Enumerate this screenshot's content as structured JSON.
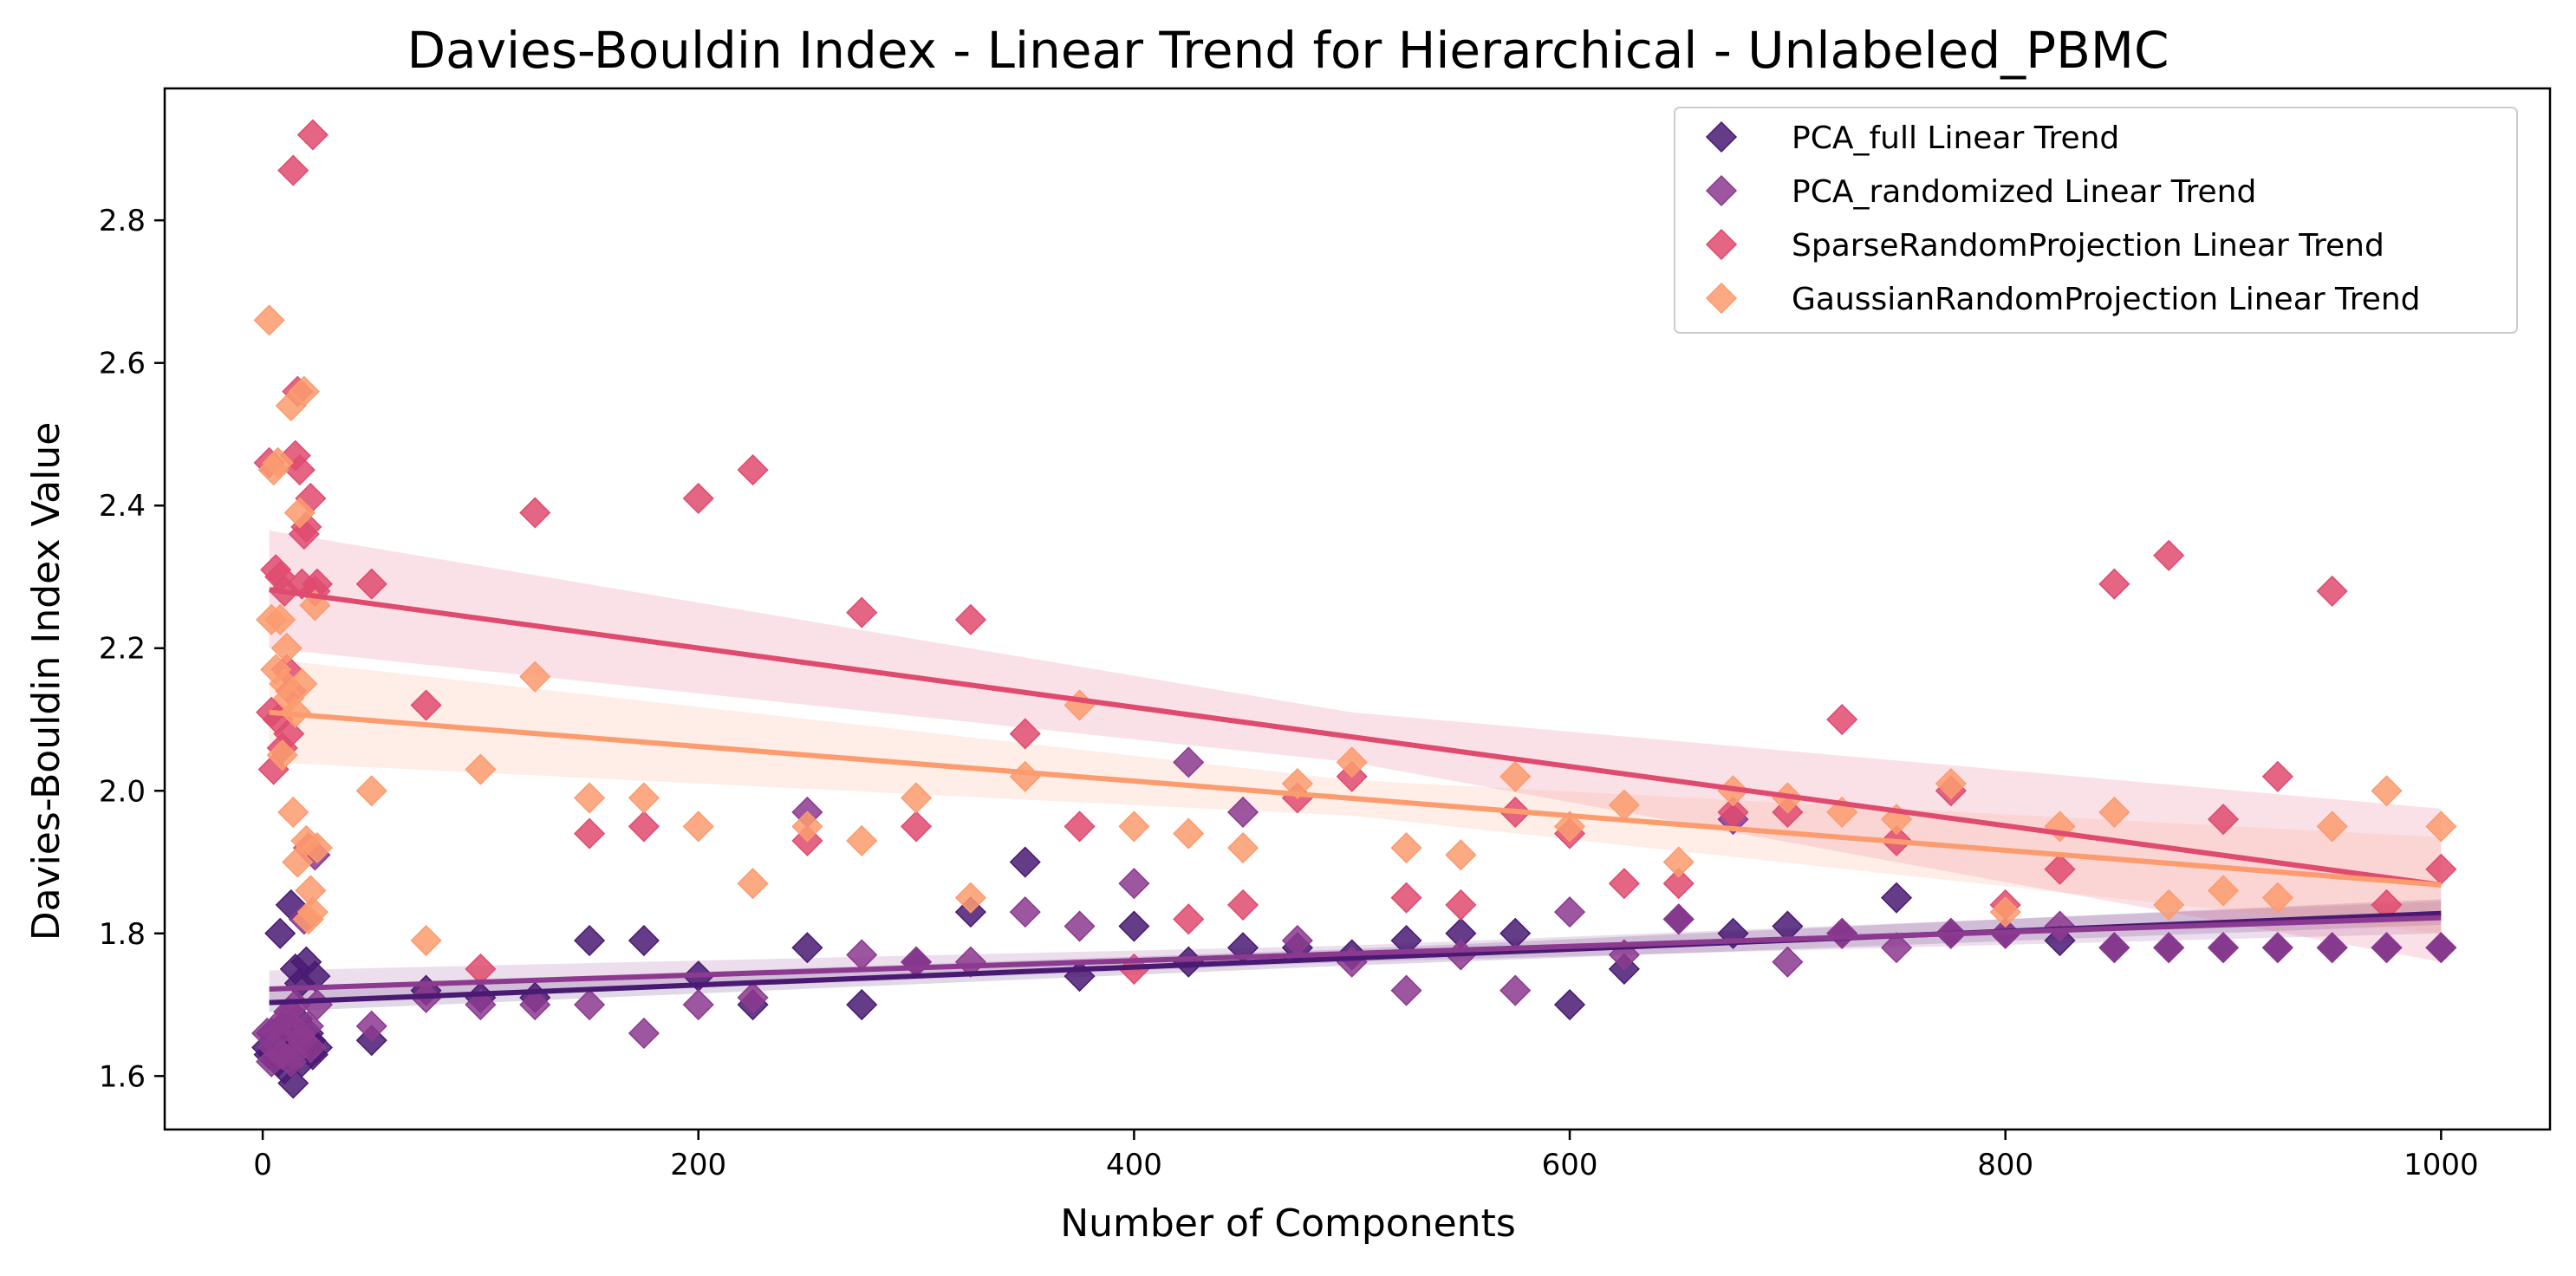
{
  "chart_data": {
    "type": "scatter",
    "title": "Davies-Bouldin Index - Linear Trend for Hierarchical - Unlabeled_PBMC",
    "xlabel": "Number of Components",
    "ylabel": "Davies-Bouldin Index Value",
    "xlim": [
      -45,
      1050
    ],
    "ylim": [
      1.525,
      2.985
    ],
    "x_ticks": [
      0,
      200,
      400,
      600,
      800,
      1000
    ],
    "y_ticks": [
      1.6,
      1.8,
      2.0,
      2.2,
      2.4,
      2.6,
      2.8
    ],
    "x_tick_labels": [
      "0",
      "200",
      "400",
      "600",
      "800",
      "1000"
    ],
    "y_tick_labels": [
      "1.6",
      "1.8",
      "2.0",
      "2.2",
      "2.4",
      "2.6",
      "2.8"
    ],
    "grid": false,
    "legend_position": "top-right",
    "marker": "diamond",
    "series": [
      {
        "name": "PCA_full Linear Trend",
        "color": "#4a1a73",
        "points": [
          [
            2,
            1.64
          ],
          [
            3,
            1.63
          ],
          [
            4,
            1.66
          ],
          [
            5,
            1.63
          ],
          [
            6,
            1.65
          ],
          [
            7,
            1.62
          ],
          [
            8,
            1.8
          ],
          [
            9,
            1.67
          ],
          [
            10,
            1.61
          ],
          [
            11,
            1.65
          ],
          [
            12,
            1.63
          ],
          [
            13,
            1.84
          ],
          [
            14,
            1.59
          ],
          [
            15,
            1.75
          ],
          [
            16,
            1.68
          ],
          [
            17,
            1.73
          ],
          [
            18,
            1.62
          ],
          [
            19,
            1.64
          ],
          [
            20,
            1.76
          ],
          [
            21,
            1.66
          ],
          [
            22,
            1.65
          ],
          [
            23,
            1.63
          ],
          [
            24,
            1.74
          ],
          [
            25,
            1.64
          ],
          [
            50,
            1.65
          ],
          [
            75,
            1.72
          ],
          [
            100,
            1.71
          ],
          [
            125,
            1.71
          ],
          [
            150,
            1.79
          ],
          [
            175,
            1.79
          ],
          [
            200,
            1.74
          ],
          [
            225,
            1.7
          ],
          [
            250,
            1.78
          ],
          [
            275,
            1.7
          ],
          [
            300,
            1.76
          ],
          [
            325,
            1.83
          ],
          [
            350,
            1.9
          ],
          [
            375,
            1.74
          ],
          [
            400,
            1.81
          ],
          [
            425,
            1.76
          ],
          [
            450,
            1.78
          ],
          [
            475,
            1.78
          ],
          [
            500,
            1.77
          ],
          [
            525,
            1.79
          ],
          [
            550,
            1.8
          ],
          [
            575,
            1.8
          ],
          [
            600,
            1.7
          ],
          [
            625,
            1.75
          ],
          [
            650,
            1.82
          ],
          [
            675,
            1.8
          ],
          [
            700,
            1.81
          ],
          [
            725,
            1.8
          ],
          [
            750,
            1.85
          ],
          [
            775,
            1.8
          ],
          [
            800,
            1.8
          ],
          [
            825,
            1.79
          ],
          [
            850,
            1.78
          ],
          [
            875,
            1.78
          ],
          [
            900,
            1.78
          ],
          [
            925,
            1.78
          ],
          [
            950,
            1.78
          ],
          [
            975,
            1.78
          ],
          [
            1000,
            1.78
          ]
        ],
        "trend": [
          [
            3,
            1.703
          ],
          [
            1000,
            1.828
          ]
        ],
        "band": [
          [
            3,
            1.69,
            1.725
          ],
          [
            500,
            1.755,
            1.778
          ],
          [
            1000,
            1.812,
            1.848
          ]
        ]
      },
      {
        "name": "PCA_randomized Linear Trend",
        "color": "#8c3a8f",
        "points": [
          [
            2,
            1.66
          ],
          [
            4,
            1.62
          ],
          [
            5,
            1.64
          ],
          [
            7,
            1.66
          ],
          [
            9,
            1.63
          ],
          [
            10,
            1.68
          ],
          [
            12,
            1.69
          ],
          [
            13,
            1.62
          ],
          [
            14,
            1.63
          ],
          [
            15,
            1.7
          ],
          [
            17,
            1.66
          ],
          [
            18,
            1.65
          ],
          [
            19,
            1.82
          ],
          [
            21,
            1.67
          ],
          [
            22,
            1.64
          ],
          [
            24,
            1.91
          ],
          [
            25,
            1.7
          ],
          [
            50,
            1.67
          ],
          [
            75,
            1.71
          ],
          [
            100,
            1.7
          ],
          [
            125,
            1.7
          ],
          [
            150,
            1.7
          ],
          [
            175,
            1.66
          ],
          [
            200,
            1.7
          ],
          [
            225,
            1.71
          ],
          [
            250,
            1.97
          ],
          [
            275,
            1.77
          ],
          [
            300,
            1.76
          ],
          [
            325,
            1.76
          ],
          [
            350,
            1.83
          ],
          [
            375,
            1.81
          ],
          [
            400,
            1.87
          ],
          [
            425,
            2.04
          ],
          [
            450,
            1.97
          ],
          [
            475,
            1.79
          ],
          [
            500,
            1.76
          ],
          [
            525,
            1.72
          ],
          [
            550,
            1.77
          ],
          [
            575,
            1.72
          ],
          [
            600,
            1.83
          ],
          [
            625,
            1.77
          ],
          [
            650,
            1.82
          ],
          [
            675,
            1.96
          ],
          [
            700,
            1.76
          ],
          [
            725,
            1.8
          ],
          [
            750,
            1.78
          ],
          [
            775,
            1.8
          ],
          [
            800,
            1.8
          ],
          [
            825,
            1.81
          ],
          [
            850,
            1.78
          ],
          [
            875,
            1.78
          ],
          [
            900,
            1.78
          ],
          [
            925,
            1.78
          ],
          [
            950,
            1.78
          ],
          [
            975,
            1.78
          ],
          [
            1000,
            1.78
          ]
        ],
        "trend": [
          [
            3,
            1.722
          ],
          [
            1000,
            1.822
          ]
        ],
        "band": [
          [
            3,
            1.7,
            1.748
          ],
          [
            500,
            1.76,
            1.783
          ],
          [
            1000,
            1.8,
            1.845
          ]
        ]
      },
      {
        "name": "SparseRandomProjection Linear Trend",
        "color": "#df4b6f",
        "points": [
          [
            3,
            2.46
          ],
          [
            4,
            2.11
          ],
          [
            5,
            2.03
          ],
          [
            6,
            2.31
          ],
          [
            7,
            2.1
          ],
          [
            8,
            2.3
          ],
          [
            9,
            2.06
          ],
          [
            10,
            2.28
          ],
          [
            11,
            2.17
          ],
          [
            12,
            2.08
          ],
          [
            13,
            2.14
          ],
          [
            14,
            2.87
          ],
          [
            15,
            2.47
          ],
          [
            16,
            2.56
          ],
          [
            17,
            2.45
          ],
          [
            18,
            2.29
          ],
          [
            19,
            2.36
          ],
          [
            20,
            2.37
          ],
          [
            21,
            1.92
          ],
          [
            22,
            2.41
          ],
          [
            23,
            2.92
          ],
          [
            24,
            2.28
          ],
          [
            25,
            2.29
          ],
          [
            50,
            2.29
          ],
          [
            75,
            2.12
          ],
          [
            100,
            1.75
          ],
          [
            125,
            2.39
          ],
          [
            150,
            1.94
          ],
          [
            175,
            1.95
          ],
          [
            200,
            2.41
          ],
          [
            225,
            2.45
          ],
          [
            250,
            1.93
          ],
          [
            275,
            2.25
          ],
          [
            300,
            1.95
          ],
          [
            325,
            2.24
          ],
          [
            350,
            2.08
          ],
          [
            375,
            1.95
          ],
          [
            400,
            1.75
          ],
          [
            425,
            1.82
          ],
          [
            450,
            1.84
          ],
          [
            475,
            1.99
          ],
          [
            500,
            2.02
          ],
          [
            525,
            1.85
          ],
          [
            550,
            1.84
          ],
          [
            575,
            1.97
          ],
          [
            600,
            1.94
          ],
          [
            625,
            1.87
          ],
          [
            650,
            1.87
          ],
          [
            675,
            1.97
          ],
          [
            700,
            1.97
          ],
          [
            725,
            2.1
          ],
          [
            750,
            1.93
          ],
          [
            775,
            2.0
          ],
          [
            800,
            1.84
          ],
          [
            825,
            1.89
          ],
          [
            850,
            2.29
          ],
          [
            875,
            2.33
          ],
          [
            900,
            1.96
          ],
          [
            925,
            2.02
          ],
          [
            950,
            2.28
          ],
          [
            975,
            1.84
          ],
          [
            1000,
            1.89
          ]
        ],
        "trend": [
          [
            3,
            2.282
          ],
          [
            1000,
            1.868
          ]
        ],
        "band": [
          [
            3,
            2.2,
            2.365
          ],
          [
            500,
            2.04,
            2.11
          ],
          [
            1000,
            1.76,
            1.975
          ]
        ]
      },
      {
        "name": "GaussianRandomProjection Linear Trend",
        "color": "#fb9b6e",
        "points": [
          [
            3,
            2.66
          ],
          [
            4,
            2.24
          ],
          [
            5,
            2.45
          ],
          [
            6,
            2.17
          ],
          [
            7,
            2.46
          ],
          [
            8,
            2.24
          ],
          [
            9,
            2.05
          ],
          [
            10,
            2.15
          ],
          [
            11,
            2.2
          ],
          [
            12,
            2.13
          ],
          [
            13,
            2.54
          ],
          [
            14,
            1.97
          ],
          [
            15,
            2.11
          ],
          [
            16,
            1.9
          ],
          [
            17,
            2.39
          ],
          [
            18,
            2.15
          ],
          [
            19,
            2.56
          ],
          [
            20,
            1.93
          ],
          [
            21,
            1.82
          ],
          [
            22,
            1.86
          ],
          [
            23,
            1.83
          ],
          [
            24,
            2.26
          ],
          [
            25,
            1.92
          ],
          [
            50,
            2.0
          ],
          [
            75,
            1.79
          ],
          [
            100,
            2.03
          ],
          [
            125,
            2.16
          ],
          [
            150,
            1.99
          ],
          [
            175,
            1.99
          ],
          [
            200,
            1.95
          ],
          [
            225,
            1.87
          ],
          [
            250,
            1.95
          ],
          [
            275,
            1.93
          ],
          [
            300,
            1.99
          ],
          [
            325,
            1.85
          ],
          [
            350,
            2.02
          ],
          [
            375,
            2.12
          ],
          [
            400,
            1.95
          ],
          [
            425,
            1.94
          ],
          [
            450,
            1.92
          ],
          [
            475,
            2.01
          ],
          [
            500,
            2.04
          ],
          [
            525,
            1.92
          ],
          [
            550,
            1.91
          ],
          [
            575,
            2.02
          ],
          [
            600,
            1.95
          ],
          [
            625,
            1.98
          ],
          [
            650,
            1.9
          ],
          [
            675,
            2.0
          ],
          [
            700,
            1.99
          ],
          [
            725,
            1.97
          ],
          [
            750,
            1.96
          ],
          [
            775,
            2.01
          ],
          [
            800,
            1.83
          ],
          [
            825,
            1.95
          ],
          [
            850,
            1.97
          ],
          [
            875,
            1.84
          ],
          [
            900,
            1.86
          ],
          [
            925,
            1.85
          ],
          [
            950,
            1.95
          ],
          [
            975,
            2.0
          ],
          [
            1000,
            1.95
          ]
        ],
        "trend": [
          [
            3,
            2.11
          ],
          [
            1000,
            1.868
          ]
        ],
        "band": [
          [
            3,
            2.04,
            2.185
          ],
          [
            500,
            1.965,
            2.015
          ],
          [
            1000,
            1.8,
            1.935
          ]
        ]
      }
    ]
  }
}
